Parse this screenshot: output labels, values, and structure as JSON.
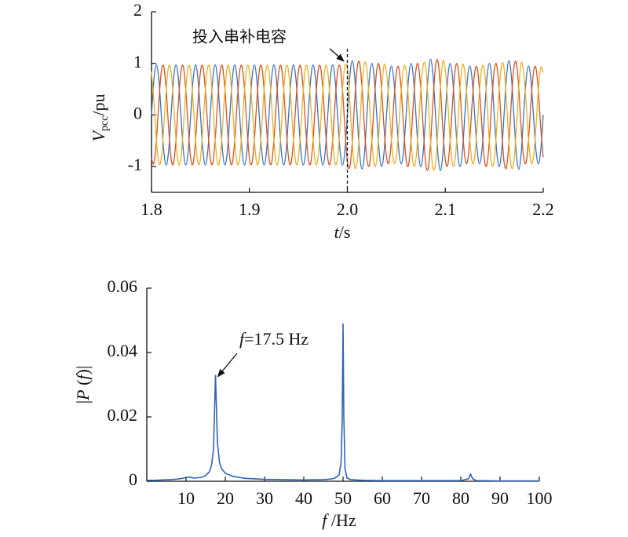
{
  "chart_data": [
    {
      "type": "line",
      "y_label": [
        "V",
        "pcc",
        "/pu"
      ],
      "x_label": [
        "t",
        "/s"
      ],
      "annotation": {
        "text": "投入串补电容",
        "x": 2
      },
      "xlim": [
        1.8,
        2.2
      ],
      "xticks": [
        1.8,
        1.9,
        {
          "value": 2,
          "label": "2.0"
        },
        2.1,
        2.2
      ],
      "ylim": [
        -1.5,
        2
      ],
      "yticks": [
        -1,
        0,
        1,
        2
      ],
      "x": [
        1.8,
        1.8025,
        1.805,
        1.8075,
        1.81,
        1.8125,
        1.815,
        1.8175,
        1.82,
        1.8225,
        1.825,
        1.8275,
        1.83,
        1.8325,
        1.835,
        1.8375,
        1.84,
        1.8425,
        1.845,
        1.8475,
        1.85,
        1.8525,
        1.855,
        1.8575,
        1.86,
        1.8625,
        1.865,
        1.8675,
        1.87,
        1.8725,
        1.875,
        1.8775,
        1.88,
        1.8825,
        1.885,
        1.8875,
        1.89,
        1.8925,
        1.895,
        1.8975,
        1.9,
        1.9025,
        1.905,
        1.9075,
        1.91,
        1.9125,
        1.915,
        1.9175,
        1.92,
        1.9225,
        1.925,
        1.9275,
        1.93,
        1.9325,
        1.935,
        1.9375,
        1.94,
        1.9425,
        1.945,
        1.9475,
        1.95,
        1.9525,
        1.955,
        1.9575,
        1.96,
        1.9625,
        1.965,
        1.9675,
        1.97,
        1.9725,
        1.975,
        1.9775,
        1.98,
        1.9825,
        1.985,
        1.9875,
        1.99,
        1.9925,
        1.995,
        1.9975,
        2,
        2.0025,
        2.005,
        2.0075,
        2.01,
        2.0125,
        2.015,
        2.0175,
        2.02,
        2.0225,
        2.025,
        2.0275,
        2.03,
        2.0325,
        2.035,
        2.0375,
        2.04,
        2.0425,
        2.045,
        2.0475,
        2.05,
        2.0525,
        2.055,
        2.0575,
        2.06,
        2.0625,
        2.065,
        2.0675,
        2.07,
        2.0725,
        2.075,
        2.0775,
        2.08,
        2.0825,
        2.085,
        2.0875,
        2.09,
        2.0925,
        2.095,
        2.0975,
        2.1,
        2.1025,
        2.105,
        2.1075,
        2.11,
        2.1125,
        2.115,
        2.1175,
        2.12,
        2.1225,
        2.125,
        2.1275,
        2.13,
        2.1325,
        2.135,
        2.1375,
        2.14,
        2.1425,
        2.145,
        2.1475,
        2.15,
        2.1525,
        2.155,
        2.1575,
        2.16,
        2.1625,
        2.165,
        2.1675,
        2.17,
        2.1725,
        2.175,
        2.1775,
        2.18,
        2.1825,
        2.185,
        2.1875,
        2.19,
        2.1925,
        2.195,
        2.1975,
        2.2
      ],
      "series": [
        {
          "color": "#3a72c4",
          "values": [
            0,
            0.69,
            0.97,
            0.69,
            0,
            -0.69,
            -0.97,
            -0.69,
            0,
            0.69,
            0.97,
            0.69,
            0,
            -0.69,
            -0.97,
            -0.69,
            0,
            0.69,
            0.97,
            0.69,
            0,
            -0.69,
            -0.97,
            -0.69,
            0,
            0.69,
            0.97,
            0.69,
            0,
            -0.69,
            -0.97,
            -0.69,
            0,
            0.69,
            0.97,
            0.69,
            0,
            -0.69,
            -0.97,
            -0.69,
            0,
            0.69,
            0.97,
            0.69,
            0,
            -0.69,
            -0.97,
            -0.69,
            0,
            0.69,
            0.97,
            0.69,
            0,
            -0.69,
            -0.97,
            -0.69,
            0,
            0.69,
            0.97,
            0.69,
            0,
            -0.69,
            -0.97,
            -0.69,
            0,
            0.69,
            0.97,
            0.69,
            0,
            -0.69,
            -0.97,
            -0.69,
            0,
            0.69,
            0.97,
            0.69,
            0,
            -0.69,
            -0.97,
            -0.69,
            0,
            0.74,
            1.05,
            0.74,
            0,
            -0.74,
            -1.05,
            -0.74,
            0,
            0.71,
            1,
            0.71,
            0,
            -0.71,
            -1,
            -0.71,
            0,
            0.67,
            0.95,
            0.67,
            0,
            -0.67,
            -0.95,
            -0.67,
            0,
            0.71,
            1,
            0.71,
            0,
            -0.71,
            -1,
            -0.71,
            0,
            0.76,
            1.08,
            0.76,
            0,
            -0.76,
            -1.08,
            -0.76,
            0,
            0.71,
            1,
            0.71,
            0,
            -0.71,
            -1,
            -0.71,
            0,
            0.67,
            0.95,
            0.67,
            0,
            -0.67,
            -0.95,
            -0.67,
            0,
            0.71,
            1,
            0.71,
            0,
            -0.71,
            -1,
            -0.71,
            0,
            0.74,
            1.05,
            0.74,
            0,
            -0.74,
            -1.05,
            -0.74,
            0,
            0.67,
            0.95,
            0.67,
            0,
            -0.67,
            -0.95,
            -0.67,
            0
          ]
        },
        {
          "color": "#d9531e",
          "values": [
            -0.84,
            -0.94,
            -0.49,
            0.25,
            0.84,
            0.94,
            0.49,
            -0.25,
            -0.84,
            -0.94,
            -0.49,
            0.25,
            0.84,
            0.94,
            0.49,
            -0.25,
            -0.84,
            -0.94,
            -0.49,
            0.25,
            0.84,
            0.94,
            0.49,
            -0.25,
            -0.84,
            -0.94,
            -0.49,
            0.25,
            0.84,
            0.94,
            0.49,
            -0.25,
            -0.84,
            -0.94,
            -0.49,
            0.25,
            0.84,
            0.94,
            0.49,
            -0.25,
            -0.84,
            -0.94,
            -0.49,
            0.25,
            0.84,
            0.94,
            0.49,
            -0.25,
            -0.84,
            -0.94,
            -0.49,
            0.25,
            0.84,
            0.94,
            0.49,
            -0.25,
            -0.84,
            -0.94,
            -0.49,
            0.25,
            0.84,
            0.94,
            0.49,
            -0.25,
            -0.84,
            -0.94,
            -0.49,
            0.25,
            0.84,
            0.94,
            0.49,
            -0.25,
            -0.84,
            -0.94,
            -0.49,
            0.25,
            0.84,
            0.94,
            0.49,
            -0.25,
            -0.91,
            -1.01,
            -0.53,
            0.27,
            0.91,
            1.01,
            0.53,
            -0.27,
            -0.87,
            -0.97,
            -0.5,
            0.26,
            0.87,
            0.97,
            0.5,
            -0.26,
            -0.82,
            -0.92,
            -0.48,
            0.25,
            0.82,
            0.92,
            0.48,
            -0.25,
            -0.87,
            -0.97,
            -0.5,
            0.26,
            0.87,
            0.97,
            0.5,
            -0.26,
            -0.94,
            -1.04,
            -0.54,
            0.28,
            0.94,
            1.04,
            0.54,
            -0.28,
            -0.87,
            -0.97,
            -0.5,
            0.26,
            0.87,
            0.97,
            0.5,
            -0.26,
            -0.82,
            -0.92,
            -0.48,
            0.25,
            0.82,
            0.92,
            0.48,
            -0.25,
            -0.87,
            -0.97,
            -0.5,
            0.26,
            0.87,
            0.97,
            0.5,
            -0.26,
            -0.91,
            -1.01,
            -0.53,
            0.27,
            0.91,
            1.01,
            0.53,
            -0.27,
            -0.82,
            -0.92,
            -0.48,
            0.25,
            0.82,
            0.92,
            0.48,
            -0.25,
            -0.82
          ]
        },
        {
          "color": "#edb120",
          "values": [
            0.84,
            0.25,
            -0.49,
            -0.94,
            -0.84,
            -0.25,
            0.49,
            0.94,
            0.84,
            0.25,
            -0.49,
            -0.94,
            -0.84,
            -0.25,
            0.49,
            0.94,
            0.84,
            0.25,
            -0.49,
            -0.94,
            -0.84,
            -0.25,
            0.49,
            0.94,
            0.84,
            0.25,
            -0.49,
            -0.94,
            -0.84,
            -0.25,
            0.49,
            0.94,
            0.84,
            0.25,
            -0.49,
            -0.94,
            -0.84,
            -0.25,
            0.49,
            0.94,
            0.84,
            0.25,
            -0.49,
            -0.94,
            -0.84,
            -0.25,
            0.49,
            0.94,
            0.84,
            0.25,
            -0.49,
            -0.94,
            -0.84,
            -0.25,
            0.49,
            0.94,
            0.84,
            0.25,
            -0.49,
            -0.94,
            -0.84,
            -0.25,
            0.49,
            0.94,
            0.84,
            0.25,
            -0.49,
            -0.94,
            -0.84,
            -0.25,
            0.49,
            0.94,
            0.84,
            0.25,
            -0.49,
            -0.94,
            -0.84,
            -0.25,
            0.49,
            0.94,
            0.91,
            0.27,
            -0.53,
            -1.01,
            -0.91,
            -0.27,
            0.53,
            1.01,
            0.87,
            0.26,
            -0.5,
            -0.97,
            -0.87,
            -0.26,
            0.5,
            0.97,
            0.82,
            0.25,
            -0.48,
            -0.92,
            -0.82,
            -0.25,
            0.48,
            0.92,
            0.87,
            0.26,
            -0.5,
            -0.97,
            -0.87,
            -0.26,
            0.5,
            0.97,
            0.94,
            0.28,
            -0.54,
            -1.04,
            -0.94,
            -0.28,
            0.54,
            1.04,
            0.87,
            0.26,
            -0.5,
            -0.97,
            -0.87,
            -0.26,
            0.5,
            0.97,
            0.82,
            0.25,
            -0.48,
            -0.92,
            -0.82,
            -0.25,
            0.48,
            0.92,
            0.87,
            0.26,
            -0.5,
            -0.97,
            -0.87,
            -0.26,
            0.5,
            0.97,
            0.91,
            0.27,
            -0.53,
            -1.01,
            -0.91,
            -0.27,
            0.53,
            1.01,
            0.82,
            0.25,
            -0.48,
            -0.92,
            -0.82,
            -0.25,
            0.48,
            0.92,
            0.82
          ]
        }
      ]
    },
    {
      "type": "line",
      "y_label": [
        "|",
        "P",
        " (",
        "f",
        ")|"
      ],
      "x_label": [
        "f",
        " /Hz"
      ],
      "annotation": {
        "text": [
          "f",
          "=17.5 Hz"
        ]
      },
      "xlim": [
        0,
        100
      ],
      "xticks": [
        10,
        20,
        30,
        40,
        50,
        60,
        70,
        80,
        90,
        100
      ],
      "ylim": [
        0,
        0.06
      ],
      "yticks": [
        0,
        0.02,
        0.04,
        0.06
      ],
      "x": [
        0,
        2,
        4,
        6,
        8,
        10,
        11,
        12,
        14,
        15,
        16,
        16.5,
        17,
        17.5,
        18,
        18.5,
        19,
        20,
        22,
        25,
        30,
        35,
        40,
        45,
        47,
        48,
        49,
        49.5,
        49.8,
        50,
        50.2,
        50.5,
        51,
        52,
        55,
        60,
        70,
        80,
        82,
        82.5,
        83,
        84,
        90,
        100
      ],
      "series": [
        {
          "color": "#2e64b8",
          "values": [
            0.0003,
            0.0003,
            0.0004,
            0.0005,
            0.0007,
            0.0011,
            0.0013,
            0.001,
            0.0012,
            0.0018,
            0.003,
            0.005,
            0.01,
            0.033,
            0.012,
            0.006,
            0.004,
            0.0025,
            0.0015,
            0.0009,
            0.0006,
            0.0005,
            0.0004,
            0.0005,
            0.0007,
            0.001,
            0.002,
            0.006,
            0.02,
            0.049,
            0.02,
            0.004,
            0.001,
            0.0005,
            0.0003,
            0.0002,
            0.0002,
            0.0002,
            0.0008,
            0.0022,
            0.0008,
            0.0002,
            0.0001,
            0.0001
          ]
        }
      ]
    }
  ]
}
